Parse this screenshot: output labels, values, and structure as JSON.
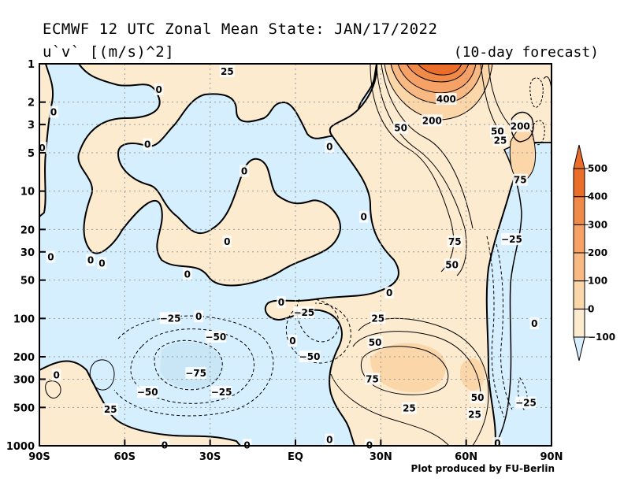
{
  "chart_data": {
    "type": "heatmap",
    "title": "ECMWF 12 UTC Zonal Mean State: JAN/17/2022",
    "subtitle": "u`v` [(m/s)^2]",
    "forecast_label": "(10-day forecast)",
    "credit": "Plot produced by FU-Berlin",
    "x_ticks": [
      {
        "value": -90,
        "label": "90S"
      },
      {
        "value": -60,
        "label": "60S"
      },
      {
        "value": -30,
        "label": "30S"
      },
      {
        "value": 0,
        "label": "EQ"
      },
      {
        "value": 30,
        "label": "30N"
      },
      {
        "value": 60,
        "label": "60N"
      },
      {
        "value": 90,
        "label": "90N"
      }
    ],
    "y_ticks": [
      1,
      2,
      3,
      5,
      10,
      20,
      30,
      50,
      100,
      200,
      300,
      500,
      1000
    ],
    "xlim": [
      -90,
      90
    ],
    "ylim": [
      1000,
      1
    ],
    "y_scale": "log",
    "grid": true,
    "colorbar": {
      "levels": [
        -100,
        0,
        100,
        200,
        300,
        400,
        500
      ],
      "labels": [
        "−100",
        "0",
        "100",
        "200",
        "300",
        "400",
        "500"
      ],
      "colors": [
        "#d6efff",
        "#fdebd0",
        "#fbd6a9",
        "#f9b983",
        "#f6a165",
        "#f08a48",
        "#ea6d29"
      ]
    },
    "contour_labels": [
      {
        "text": "25",
        "lat": -24,
        "p": 1.15
      },
      {
        "text": "0",
        "lat": -48,
        "p": 1.6
      },
      {
        "text": "0",
        "lat": -85,
        "p": 2.4
      },
      {
        "text": "0",
        "lat": -89,
        "p": 4.6
      },
      {
        "text": "0",
        "lat": -52,
        "p": 4.3
      },
      {
        "text": "0",
        "lat": 12,
        "p": 4.5
      },
      {
        "text": "0",
        "lat": -18,
        "p": 7
      },
      {
        "text": "0",
        "lat": 24,
        "p": 16
      },
      {
        "text": "0",
        "lat": -24,
        "p": 25
      },
      {
        "text": "0",
        "lat": -72,
        "p": 35
      },
      {
        "text": "0",
        "lat": -68,
        "p": 37
      },
      {
        "text": "0",
        "lat": -38,
        "p": 45
      },
      {
        "text": "0",
        "lat": -86,
        "p": 33
      },
      {
        "text": "0",
        "lat": 33,
        "p": 63
      },
      {
        "text": "0",
        "lat": -5,
        "p": 75
      },
      {
        "text": "0",
        "lat": -34,
        "p": 97
      },
      {
        "text": "0",
        "lat": -1,
        "p": 150
      },
      {
        "text": "−25",
        "lat": -44,
        "p": 100
      },
      {
        "text": "−25",
        "lat": 3,
        "p": 90
      },
      {
        "text": "−50",
        "lat": -28,
        "p": 140
      },
      {
        "text": "−50",
        "lat": 5,
        "p": 200
      },
      {
        "text": "−75",
        "lat": -35,
        "p": 270
      },
      {
        "text": "−50",
        "lat": -52,
        "p": 380
      },
      {
        "text": "−25",
        "lat": -26,
        "p": 380
      },
      {
        "text": "25",
        "lat": -65,
        "p": 520
      },
      {
        "text": "0",
        "lat": -84,
        "p": 280
      },
      {
        "text": "0",
        "lat": 12,
        "p": 900
      },
      {
        "text": "0",
        "lat": 26,
        "p": 990
      },
      {
        "text": "400",
        "lat": 53,
        "p": 1.9
      },
      {
        "text": "200",
        "lat": 48,
        "p": 2.8
      },
      {
        "text": "50",
        "lat": 37,
        "p": 3.2
      },
      {
        "text": "50",
        "lat": 71,
        "p": 3.4
      },
      {
        "text": "200",
        "lat": 79,
        "p": 3.1
      },
      {
        "text": "25",
        "lat": 72,
        "p": 4.0
      },
      {
        "text": "75",
        "lat": 79,
        "p": 8.2
      },
      {
        "text": "75",
        "lat": 56,
        "p": 25
      },
      {
        "text": "50",
        "lat": 55,
        "p": 38
      },
      {
        "text": "−25",
        "lat": 76,
        "p": 24
      },
      {
        "text": "0",
        "lat": 84,
        "p": 110
      },
      {
        "text": "25",
        "lat": 29,
        "p": 100
      },
      {
        "text": "50",
        "lat": 28,
        "p": 155
      },
      {
        "text": "75",
        "lat": 27,
        "p": 300
      },
      {
        "text": "25",
        "lat": 40,
        "p": 510
      },
      {
        "text": "50",
        "lat": 64,
        "p": 420
      },
      {
        "text": "25",
        "lat": 63,
        "p": 570
      },
      {
        "text": "−25",
        "lat": 81,
        "p": 460
      },
      {
        "text": "0",
        "lat": 71,
        "p": 960
      },
      {
        "text": "0",
        "lat": -46,
        "p": 990
      },
      {
        "text": "0",
        "lat": -17,
        "p": 990
      }
    ]
  }
}
